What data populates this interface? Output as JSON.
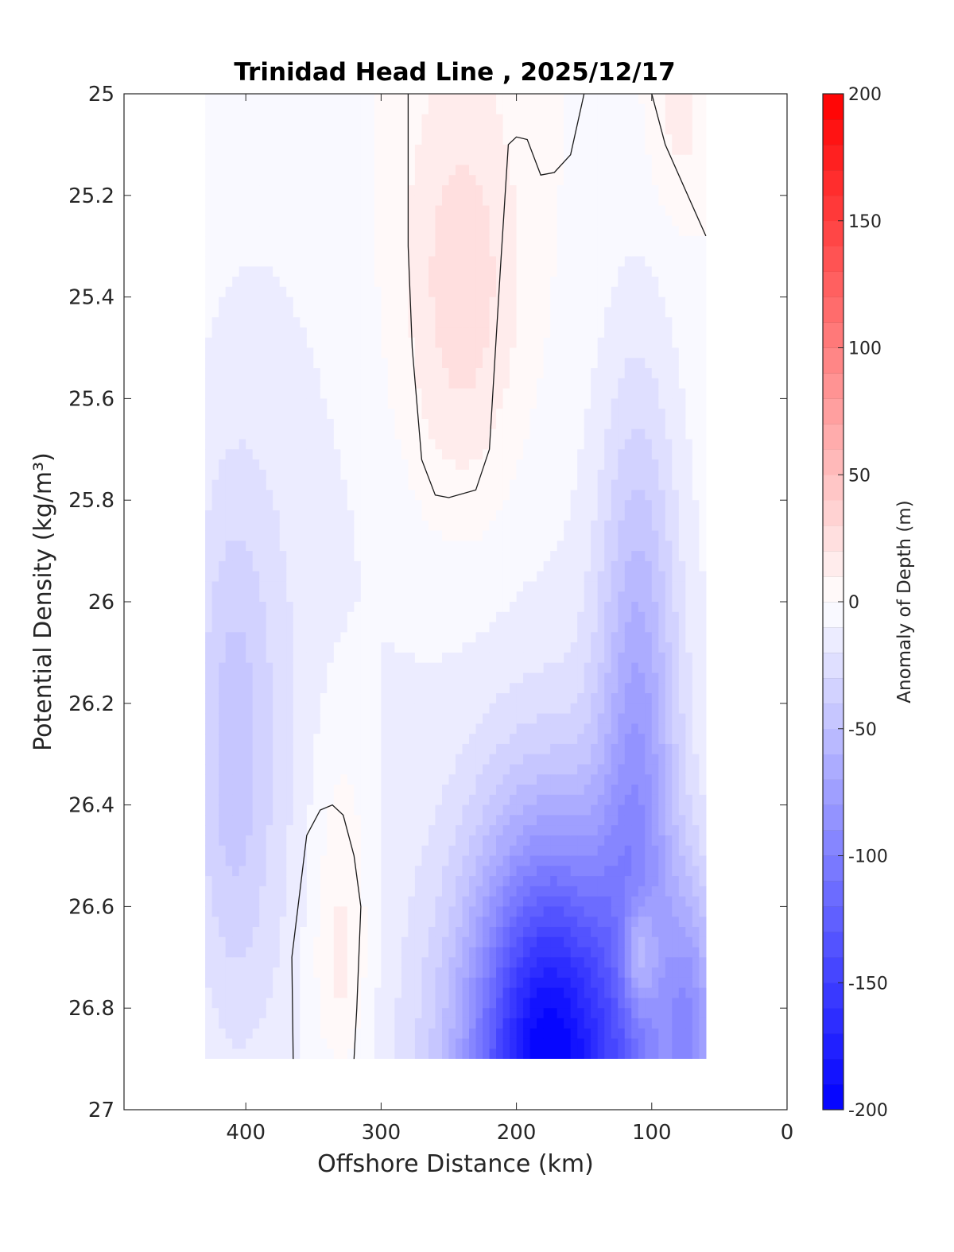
{
  "chart_data": {
    "type": "heatmap",
    "subtype": "filled-contour",
    "title": "Trinidad Head Line , 2025/12/17",
    "xlabel": "Offshore Distance (km)",
    "ylabel": "Potential Density (kg/m³)",
    "xlim": [
      490,
      0
    ],
    "ylim": [
      25,
      27
    ],
    "x_reversed": true,
    "y_reversed": true,
    "x_ticks": [
      "400",
      "300",
      "200",
      "100",
      "0"
    ],
    "x_tick_values": [
      400,
      300,
      200,
      100,
      0
    ],
    "y_ticks": [
      "25",
      "25.2",
      "25.4",
      "25.6",
      "25.8",
      "26",
      "26.2",
      "26.4",
      "26.6",
      "26.8",
      "27"
    ],
    "y_tick_values": [
      25,
      25.2,
      25.4,
      25.6,
      25.8,
      26,
      26.2,
      26.4,
      26.6,
      26.8,
      27
    ],
    "colorbar": {
      "label": "Anomaly of Depth (m)",
      "range": [
        -200,
        200
      ],
      "ticks": [
        "200",
        "150",
        "100",
        "50",
        "0",
        "-50",
        "-100",
        "-150",
        "-200"
      ],
      "tick_values": [
        200,
        150,
        100,
        50,
        0,
        -50,
        -100,
        -150,
        -200
      ],
      "levels": 40,
      "color_min": "#0000ff",
      "color_mid": "#ffffff",
      "color_max": "#ff0000"
    },
    "data_extent": {
      "x": [
        430,
        60
      ],
      "y": [
        25,
        26.9
      ]
    },
    "grid": false,
    "features": [
      {
        "kind": "min",
        "x": 175,
        "y": 26.9,
        "value": -190
      },
      {
        "kind": "min",
        "x": 110,
        "y": 26.4,
        "value": -95
      },
      {
        "kind": "min",
        "x": 70,
        "y": 26.85,
        "value": -115
      },
      {
        "kind": "min",
        "x": 410,
        "y": 26.3,
        "value": -30
      },
      {
        "kind": "max",
        "x": 330,
        "y": 26.75,
        "value": 8
      },
      {
        "kind": "max",
        "x": 80,
        "y": 25.05,
        "value": 8
      },
      {
        "kind": "local",
        "x": 110,
        "y": 26.7,
        "value": -15
      }
    ],
    "zero_contours": [
      {
        "name": "upper-loop",
        "points": [
          [
            280,
            25.0
          ],
          [
            280,
            25.3
          ],
          [
            277,
            25.5
          ],
          [
            270,
            25.72
          ],
          [
            260,
            25.79
          ],
          [
            250,
            25.795
          ],
          [
            230,
            25.78
          ],
          [
            220,
            25.7
          ],
          [
            212,
            25.35
          ],
          [
            206,
            25.1
          ],
          [
            200,
            25.085
          ],
          [
            192,
            25.09
          ],
          [
            182,
            25.16
          ],
          [
            172,
            25.155
          ],
          [
            160,
            25.12
          ],
          [
            150,
            25.0
          ]
        ]
      },
      {
        "name": "upper-right",
        "points": [
          [
            100,
            25.0
          ],
          [
            90,
            25.1
          ],
          [
            75,
            25.19
          ],
          [
            60,
            25.28
          ]
        ]
      },
      {
        "name": "lower-loop",
        "points": [
          [
            365,
            26.9
          ],
          [
            366,
            26.7
          ],
          [
            355,
            26.46
          ],
          [
            345,
            26.41
          ],
          [
            336,
            26.4
          ],
          [
            328,
            26.42
          ],
          [
            320,
            26.5
          ],
          [
            315,
            26.6
          ],
          [
            318,
            26.8
          ],
          [
            320,
            26.9
          ]
        ]
      }
    ]
  }
}
